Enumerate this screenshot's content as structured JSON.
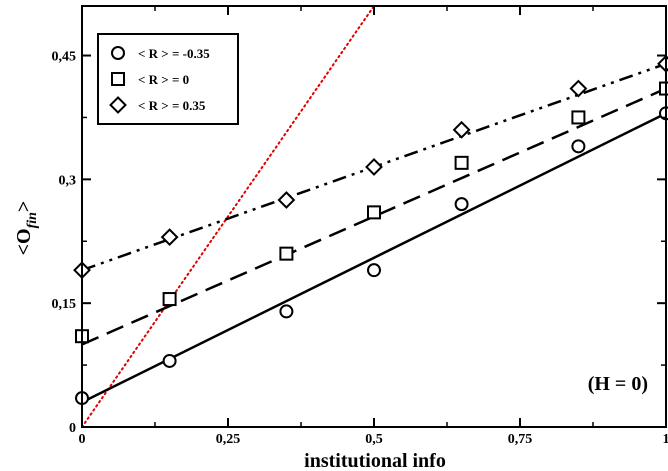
{
  "chart_data": {
    "type": "scatter",
    "xlabel": "institutional info",
    "ylabel": "<O_fin>",
    "xlim": [
      0,
      1
    ],
    "ylim": [
      0,
      0.51
    ],
    "x_ticks": [
      0,
      0.25,
      0.5,
      0.75,
      1
    ],
    "x_tick_labels": [
      "0",
      "0,25",
      "0,5",
      "0,75",
      "1"
    ],
    "y_ticks": [
      0,
      0.15,
      0.3,
      0.45
    ],
    "y_tick_labels": [
      "0",
      "0,15",
      "0,3",
      "0,45"
    ],
    "grid": false,
    "legend_position": "top-left",
    "annotation": "(H = 0)",
    "series": [
      {
        "name": "< R > = -0.35",
        "marker": "circle",
        "line_style": "solid",
        "x": [
          0,
          0.15,
          0.35,
          0.5,
          0.65,
          0.85,
          1
        ],
        "y": [
          0.035,
          0.08,
          0.14,
          0.19,
          0.27,
          0.34,
          0.38
        ],
        "fit": [
          [
            0,
            0.03
          ],
          [
            1,
            0.38
          ]
        ]
      },
      {
        "name": "< R > = 0",
        "marker": "square",
        "line_style": "dashed",
        "x": [
          0,
          0.15,
          0.35,
          0.5,
          0.65,
          0.85,
          1
        ],
        "y": [
          0.11,
          0.155,
          0.21,
          0.26,
          0.32,
          0.375,
          0.41
        ],
        "fit": [
          [
            0,
            0.1
          ],
          [
            1,
            0.41
          ]
        ]
      },
      {
        "name": "< R > = 0.35",
        "marker": "diamond",
        "line_style": "dash-dot-dot",
        "x": [
          0,
          0.15,
          0.35,
          0.5,
          0.65,
          0.85,
          1
        ],
        "y": [
          0.19,
          0.23,
          0.275,
          0.315,
          0.36,
          0.41,
          0.44
        ],
        "fit": [
          [
            0,
            0.19
          ],
          [
            1,
            0.44
          ]
        ]
      }
    ],
    "reference_line": {
      "style": "dotted",
      "color": "#e00000",
      "points": [
        [
          0,
          0
        ],
        [
          0.5,
          0.51
        ]
      ]
    }
  }
}
